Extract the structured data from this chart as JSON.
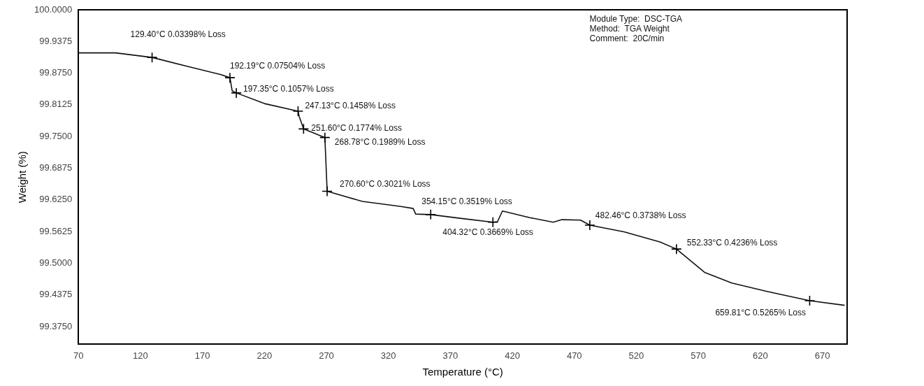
{
  "chart_data": {
    "type": "line",
    "xlabel": "Temperature (°C)",
    "ylabel": "Weight (%)",
    "xlim": [
      70,
      690
    ],
    "xticks": [
      70,
      120,
      170,
      220,
      270,
      320,
      370,
      420,
      470,
      520,
      570,
      620,
      670
    ],
    "ylim": [
      99.34,
      100
    ],
    "yticks": [
      {
        "value": 100,
        "label": "100.0000"
      },
      99.9375,
      {
        "value": 99.875,
        "label": "99.8750"
      },
      99.8125,
      {
        "value": 99.75,
        "label": "99.7500"
      },
      99.6875,
      {
        "value": 99.625,
        "label": "99.6250"
      },
      99.5625,
      {
        "value": 99.5,
        "label": "99.5000"
      },
      99.4375,
      {
        "value": 99.375,
        "label": "99.3750"
      }
    ],
    "grid": false,
    "legend": false,
    "marker": "none",
    "line_style": "solid",
    "series": [
      {
        "color": "#111111",
        "x": [
          70,
          100,
          129.4,
          157,
          185,
          192.2,
          194,
          197.35,
          220,
          247.13,
          248,
          251.6,
          268.78,
          270.6,
          299,
          330,
          340,
          342,
          354.15,
          380,
          404.3,
          408,
          412,
          434,
          453,
          460,
          475,
          482.46,
          510,
          539,
          552.33,
          575,
          597,
          626,
          659.81,
          688
        ],
        "values": [
          99.915,
          99.915,
          99.906,
          99.889,
          99.872,
          99.866,
          99.84,
          99.836,
          99.815,
          99.8,
          99.79,
          99.765,
          99.748,
          99.642,
          99.622,
          99.612,
          99.608,
          99.597,
          99.596,
          99.588,
          99.581,
          99.582,
          99.603,
          99.59,
          99.581,
          99.586,
          99.585,
          99.575,
          99.562,
          99.542,
          99.528,
          99.482,
          99.461,
          99.444,
          99.426,
          99.417
        ]
      }
    ],
    "annotations": [
      {
        "text": "129.40°C 0.03398% Loss",
        "x": 129.4,
        "y": 99.906
      },
      {
        "text": "192.19°C 0.07504% Loss",
        "x": 192.19,
        "y": 99.866
      },
      {
        "text": "197.35°C 0.1057% Loss",
        "x": 197.35,
        "y": 99.836
      },
      {
        "text": "247.13°C 0.1458% Loss",
        "x": 247.13,
        "y": 99.8
      },
      {
        "text": "251.60°C 0.1774% Loss",
        "x": 251.6,
        "y": 99.765
      },
      {
        "text": "268.78°C 0.1989% Loss",
        "x": 268.78,
        "y": 99.748
      },
      {
        "text": "270.60°C 0.3021% Loss",
        "x": 270.6,
        "y": 99.642
      },
      {
        "text": "354.15°C 0.3519% Loss",
        "x": 354.15,
        "y": 99.596
      },
      {
        "text": "404.32°C 0.3669% Loss",
        "x": 404.32,
        "y": 99.581
      },
      {
        "text": "482.46°C 0.3738% Loss",
        "x": 482.46,
        "y": 99.575
      },
      {
        "text": "552.33°C 0.4236% Loss",
        "x": 552.33,
        "y": 99.528
      },
      {
        "text": "659.81°C 0.5265% Loss",
        "x": 659.81,
        "y": 99.426
      },
      "Module Type:  DSC-TGA",
      "Method:  TGA Weight",
      "Comment:  20C/min"
    ]
  }
}
